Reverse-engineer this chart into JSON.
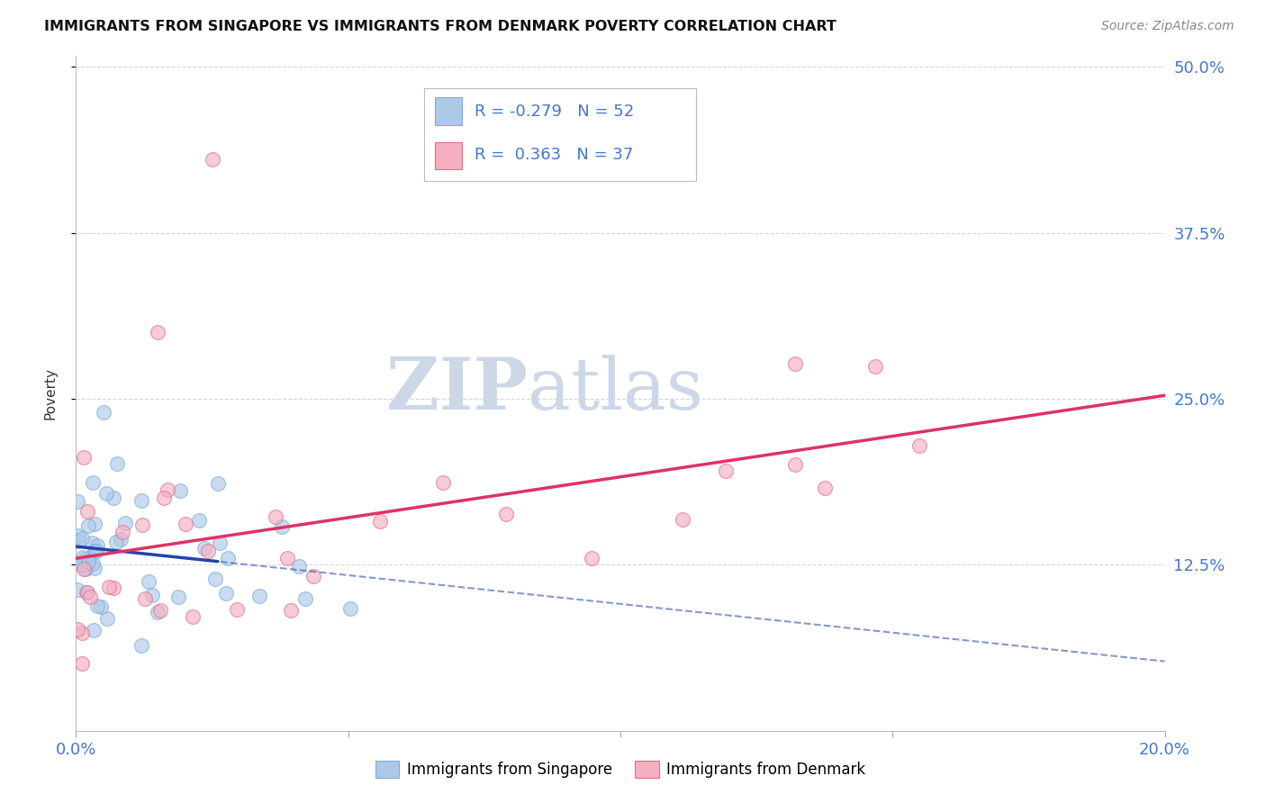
{
  "title": "IMMIGRANTS FROM SINGAPORE VS IMMIGRANTS FROM DENMARK POVERTY CORRELATION CHART",
  "source": "Source: ZipAtlas.com",
  "ylabel": "Poverty",
  "ytick_labels": [
    "50.0%",
    "37.5%",
    "25.0%",
    "12.5%"
  ],
  "ytick_values": [
    0.5,
    0.375,
    0.25,
    0.125
  ],
  "xlim": [
    0.0,
    0.2
  ],
  "ylim": [
    0.0,
    0.5
  ],
  "singapore_color": "#adc9e8",
  "denmark_color": "#f5afc0",
  "singapore_edge": "#7aadd4",
  "denmark_edge": "#e07090",
  "regression_singapore_color": "#2244aa",
  "regression_denmark_color": "#dd3366",
  "legend_text_color": "#4477cc",
  "singapore_label": "Immigrants from Singapore",
  "denmark_label": "Immigrants from Denmark",
  "bg_color": "#ffffff",
  "grid_color": "#cccccc",
  "watermark_color": "#ccd8e8",
  "title_color": "#111111",
  "source_color": "#888888",
  "ylabel_color": "#333333",
  "axis_label_color": "#4477cc"
}
